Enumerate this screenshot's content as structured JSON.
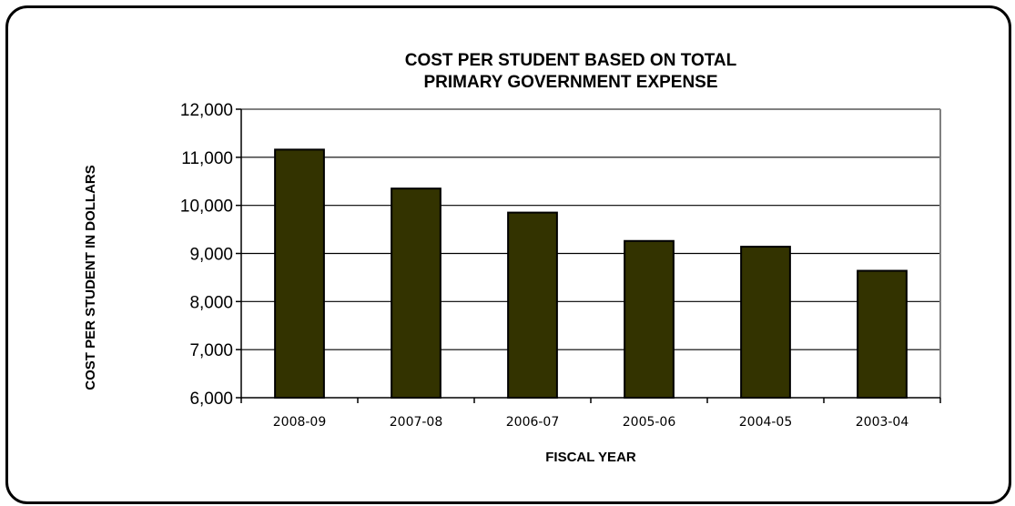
{
  "chart_data": {
    "type": "bar",
    "title_line1": "COST PER STUDENT BASED ON TOTAL",
    "title_line2": "PRIMARY GOVERNMENT EXPENSE",
    "xlabel": "FISCAL YEAR",
    "ylabel": "COST PER STUDENT IN DOLLARS",
    "categories": [
      "2008-09",
      "2007-08",
      "2006-07",
      "2005-06",
      "2004-05",
      "2003-04"
    ],
    "values": [
      11160,
      10350,
      9850,
      9260,
      9140,
      8640
    ],
    "ylim": [
      6000,
      12000
    ],
    "yticks": [
      6000,
      7000,
      8000,
      9000,
      10000,
      11000,
      12000
    ],
    "ytick_labels": [
      "6,000",
      "7,000",
      "8,000",
      "9,000",
      "10,000",
      "11,000",
      "12,000"
    ],
    "grid": true,
    "legend": "none",
    "colors": {
      "bar": "#333300",
      "bar_edge": "#000000",
      "plot_border": "#808080",
      "grid": "#000000"
    }
  }
}
